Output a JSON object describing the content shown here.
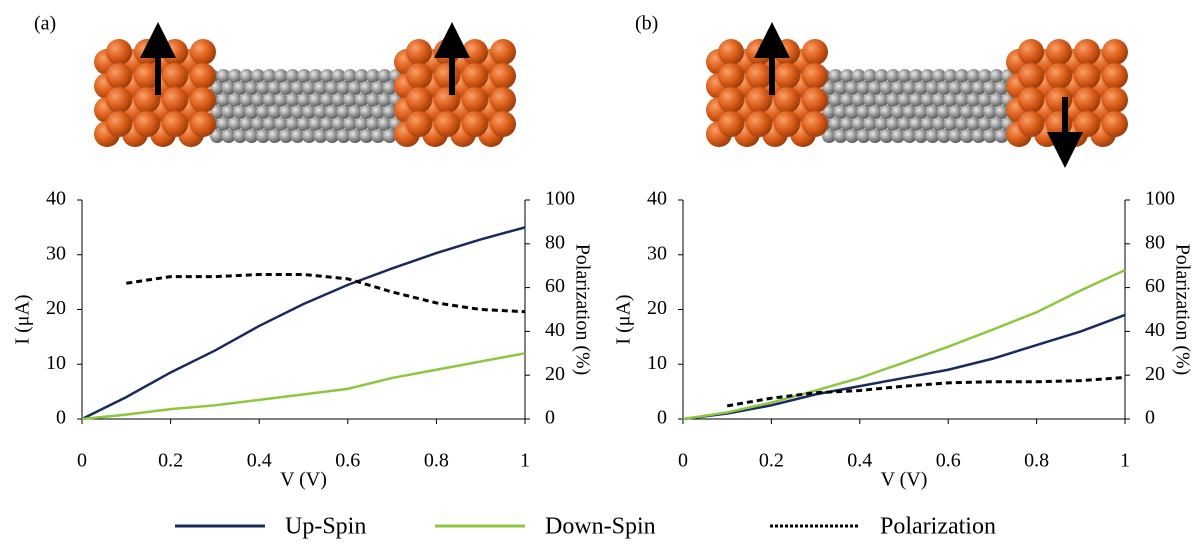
{
  "chart_data": [
    {
      "type": "line",
      "panel_label": "(a)",
      "xlabel": "V (V)",
      "ylabel": "I (μA)",
      "y2label": "Polarization (%)",
      "x": [
        0,
        0.1,
        0.2,
        0.3,
        0.4,
        0.5,
        0.6,
        0.7,
        0.8,
        0.9,
        1
      ],
      "xlim": [
        0,
        1
      ],
      "xticks": [
        0,
        0.2,
        0.4,
        0.6,
        0.8,
        1
      ],
      "ylim": [
        0,
        40
      ],
      "yticks": [
        0,
        10,
        20,
        30,
        40
      ],
      "y2lim": [
        0,
        100
      ],
      "y2ticks": [
        0,
        20,
        40,
        60,
        80,
        100
      ],
      "series": [
        {
          "name": "Up-Spin",
          "color": "#1b2a5c",
          "values": [
            0,
            4,
            8.5,
            12.5,
            17,
            21,
            24.5,
            27.5,
            30.3,
            32.8,
            35
          ]
        },
        {
          "name": "Down-Spin",
          "color": "#8dc63f",
          "values": [
            0,
            0.8,
            1.8,
            2.5,
            3.5,
            4.5,
            5.5,
            7.5,
            9,
            10.5,
            12
          ]
        },
        {
          "name": "Polarization",
          "color": "#000000",
          "dashed": true,
          "axis": "y2",
          "values": [
            null,
            62,
            65,
            65,
            66,
            66,
            64,
            58,
            53,
            50,
            49
          ]
        }
      ]
    },
    {
      "type": "line",
      "panel_label": "(b)",
      "xlabel": "V (V)",
      "ylabel": "I (μA)",
      "y2label": "Polarization (%)",
      "x": [
        0,
        0.1,
        0.2,
        0.3,
        0.4,
        0.5,
        0.6,
        0.7,
        0.8,
        0.9,
        1
      ],
      "xlim": [
        0,
        1
      ],
      "xticks": [
        0,
        0.2,
        0.4,
        0.6,
        0.8,
        1
      ],
      "ylim": [
        0,
        40
      ],
      "yticks": [
        0,
        10,
        20,
        30,
        40
      ],
      "y2lim": [
        0,
        100
      ],
      "y2ticks": [
        0,
        20,
        40,
        60,
        80,
        100
      ],
      "series": [
        {
          "color": "#1b2a5c",
          "values": [
            0,
            1,
            2.5,
            4.5,
            6,
            7.5,
            9,
            11,
            13.5,
            16,
            19
          ]
        },
        {
          "color": "#8dc63f",
          "values": [
            0,
            1.2,
            3,
            5.2,
            7.5,
            10.3,
            13.2,
            16.3,
            19.5,
            23.5,
            27.2
          ]
        },
        {
          "color": "#000000",
          "dashed": true,
          "axis": "y2",
          "values": [
            null,
            6,
            9.5,
            12,
            13,
            15,
            16.5,
            17,
            17,
            17.5,
            19
          ]
        }
      ]
    }
  ]
}
